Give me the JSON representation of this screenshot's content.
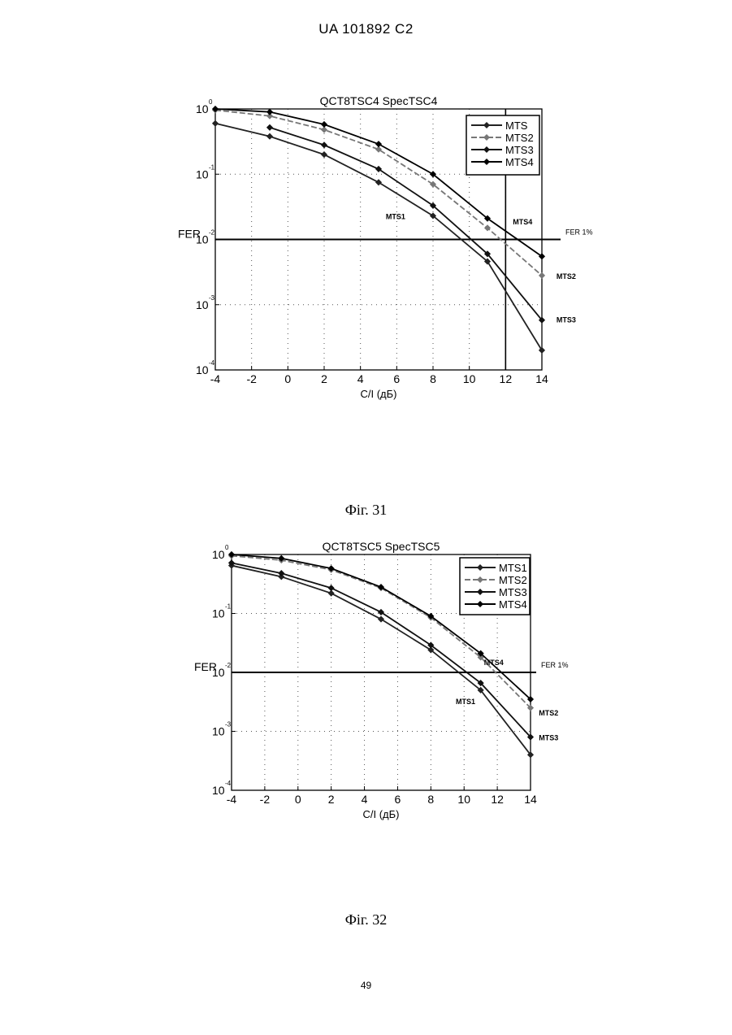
{
  "header": {
    "doc_id": "UA   101892   C2"
  },
  "footer": {
    "page_number": "49"
  },
  "chart_data": [
    {
      "type": "line",
      "title": "QCT8TSC4 SpecTSC4",
      "xlabel": "C/I (дБ)",
      "ylabel": "FER",
      "yscale": "log",
      "xlim": [
        -4,
        14
      ],
      "ylim": [
        0.0001,
        1
      ],
      "xticks": [
        "-4",
        "-2",
        "0",
        "2",
        "4",
        "6",
        "8",
        "10",
        "12",
        "14"
      ],
      "yticks": [
        {
          "base": "10",
          "exp": "0",
          "value": 1
        },
        {
          "base": "10",
          "exp": "-1",
          "value": 0.1
        },
        {
          "base": "10",
          "exp": "-2",
          "value": 0.01
        },
        {
          "base": "10",
          "exp": "-3",
          "value": 0.001
        },
        {
          "base": "10",
          "exp": "-4",
          "value": 0.0001
        }
      ],
      "grid": "dotted",
      "legend_position": "top-right",
      "fer_line": {
        "value": 0.01,
        "label": "FER 1%"
      },
      "vertical_line_x": 12,
      "series": [
        {
          "name": "MTS",
          "label": "MTS1",
          "color": "#222222",
          "dash": "",
          "x": [
            -4,
            -1,
            2,
            5,
            8,
            11,
            14
          ],
          "y": [
            0.6,
            0.38,
            0.2,
            0.075,
            0.023,
            0.0046,
            0.0002
          ]
        },
        {
          "name": "MTS2",
          "label": "MTS2",
          "color": "#777777",
          "dash": "7 3",
          "x": [
            -4,
            -1,
            2,
            5,
            8,
            11,
            14
          ],
          "y": [
            0.96,
            0.78,
            0.48,
            0.24,
            0.07,
            0.015,
            0.0028
          ]
        },
        {
          "name": "MTS3",
          "label": "MTS3",
          "color": "#111111",
          "dash": "",
          "x": [
            -1,
            2,
            5,
            8,
            11,
            14
          ],
          "y": [
            0.52,
            0.28,
            0.12,
            0.033,
            0.006,
            0.00058
          ]
        },
        {
          "name": "MTS4",
          "label": "MTS4",
          "color": "#000000",
          "dash": "",
          "x": [
            -4,
            -1,
            2,
            5,
            8,
            11,
            14
          ],
          "y": [
            1.0,
            0.9,
            0.58,
            0.29,
            0.1,
            0.021,
            0.0055
          ]
        }
      ],
      "series_labels": [
        {
          "text": "MTS1",
          "x": 5.4,
          "y": 0.023
        },
        {
          "text": "MTS4",
          "x": 12.4,
          "y": 0.019
        },
        {
          "text": "MTS2",
          "x": 14.8,
          "y": 0.0028
        },
        {
          "text": "MTS3",
          "x": 14.8,
          "y": 0.0006
        }
      ],
      "caption": "Фіг. 31"
    },
    {
      "type": "line",
      "title": "QCT8TSC5 SpecTSC5",
      "xlabel": "C/I (дБ)",
      "ylabel": "FER",
      "yscale": "log",
      "xlim": [
        -4,
        14
      ],
      "ylim": [
        0.0001,
        1
      ],
      "xticks": [
        "-4",
        "-2",
        "0",
        "2",
        "4",
        "6",
        "8",
        "10",
        "12",
        "14"
      ],
      "yticks": [
        {
          "base": "10",
          "exp": "0",
          "value": 1
        },
        {
          "base": "10",
          "exp": "-1",
          "value": 0.1
        },
        {
          "base": "10",
          "exp": "-2",
          "value": 0.01
        },
        {
          "base": "10",
          "exp": "-3",
          "value": 0.001
        },
        {
          "base": "10",
          "exp": "-4",
          "value": 0.0001
        }
      ],
      "grid": "dotted",
      "legend_position": "top-right",
      "fer_line": {
        "value": 0.01,
        "label": "FER 1%"
      },
      "vertical_line_x": null,
      "series": [
        {
          "name": "MTS1",
          "label": "MTS1",
          "color": "#222222",
          "dash": "",
          "x": [
            -4,
            -1,
            2,
            5,
            8,
            11,
            14
          ],
          "y": [
            0.65,
            0.42,
            0.22,
            0.08,
            0.024,
            0.005,
            0.0004
          ]
        },
        {
          "name": "MTS2",
          "label": "MTS2",
          "color": "#777777",
          "dash": "7 3",
          "x": [
            -4,
            -1,
            2,
            5,
            8,
            11,
            14
          ],
          "y": [
            0.95,
            0.8,
            0.55,
            0.27,
            0.085,
            0.018,
            0.0025
          ]
        },
        {
          "name": "MTS3",
          "label": "MTS3",
          "color": "#111111",
          "dash": "",
          "x": [
            -4,
            -1,
            2,
            5,
            8,
            11,
            14
          ],
          "y": [
            0.72,
            0.48,
            0.27,
            0.105,
            0.029,
            0.0066,
            0.0008
          ]
        },
        {
          "name": "MTS4",
          "label": "MTS4",
          "color": "#000000",
          "dash": "",
          "x": [
            -4,
            -1,
            2,
            5,
            8,
            11,
            14
          ],
          "y": [
            1.0,
            0.86,
            0.58,
            0.28,
            0.09,
            0.021,
            0.0035
          ]
        }
      ],
      "series_labels": [
        {
          "text": "MTS4",
          "x": 11.2,
          "y": 0.015
        },
        {
          "text": "MTS1",
          "x": 9.5,
          "y": 0.0033
        },
        {
          "text": "MTS2",
          "x": 14.5,
          "y": 0.0021
        },
        {
          "text": "MTS3",
          "x": 14.5,
          "y": 0.0008
        }
      ],
      "caption": "Фіг. 32"
    }
  ]
}
